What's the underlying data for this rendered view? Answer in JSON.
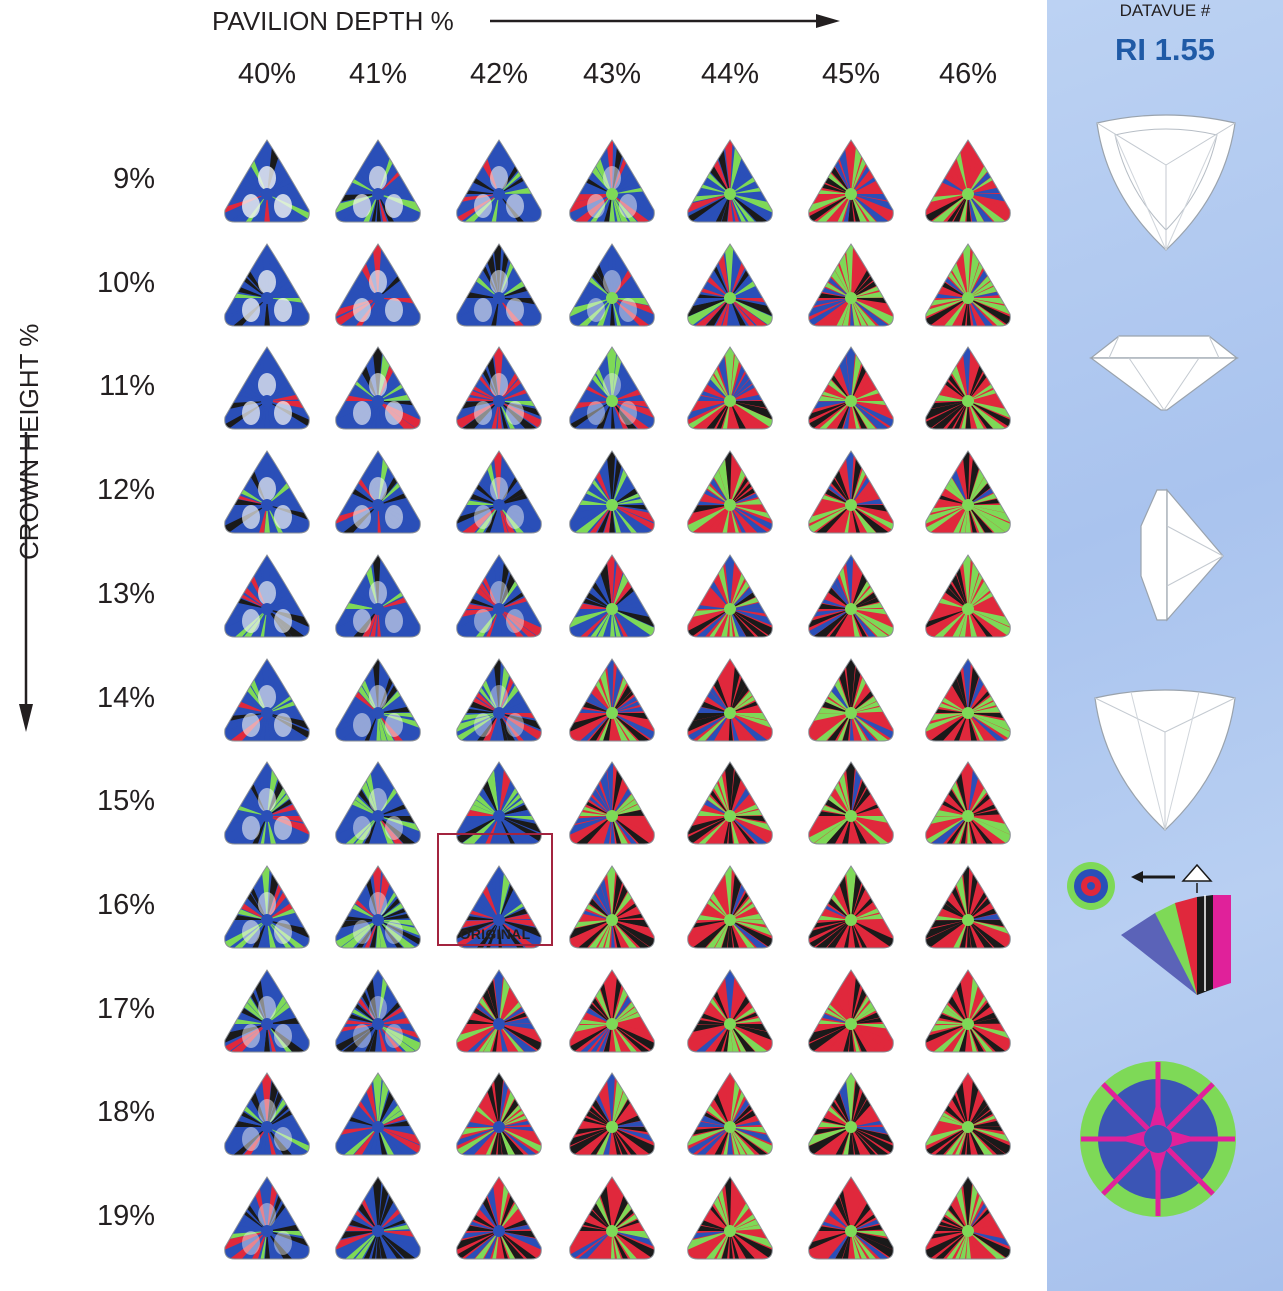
{
  "axes": {
    "pavilion_label": "PAVILION DEPTH %",
    "crown_label": "CROWN HEIGHT %",
    "pavilion_values": [
      "40%",
      "41%",
      "42%",
      "43%",
      "44%",
      "45%",
      "46%"
    ],
    "crown_values": [
      "9%",
      "10%",
      "11%",
      "12%",
      "13%",
      "14%",
      "15%",
      "16%",
      "17%",
      "18%",
      "19%"
    ]
  },
  "original": {
    "label": "ORIGINAL",
    "pavilion": "42%",
    "crown": "16%"
  },
  "panel": {
    "datavue_label": "DATAVUE #",
    "ri_label": "RI 1.55",
    "views": [
      "top-view",
      "side-view",
      "end-view",
      "pavilion-view",
      "tilt-diagram",
      "tilt-pattern"
    ]
  },
  "colors": {
    "blue": "#2a4fb8",
    "red": "#e0283c",
    "green": "#7ed957",
    "black": "#1a1a1a",
    "white": "#f2f4f4",
    "panel_bg": "#b3cbf1",
    "accent": "#1f5aa6",
    "original_border": "#a3243f",
    "magenta": "#e0219a"
  }
}
